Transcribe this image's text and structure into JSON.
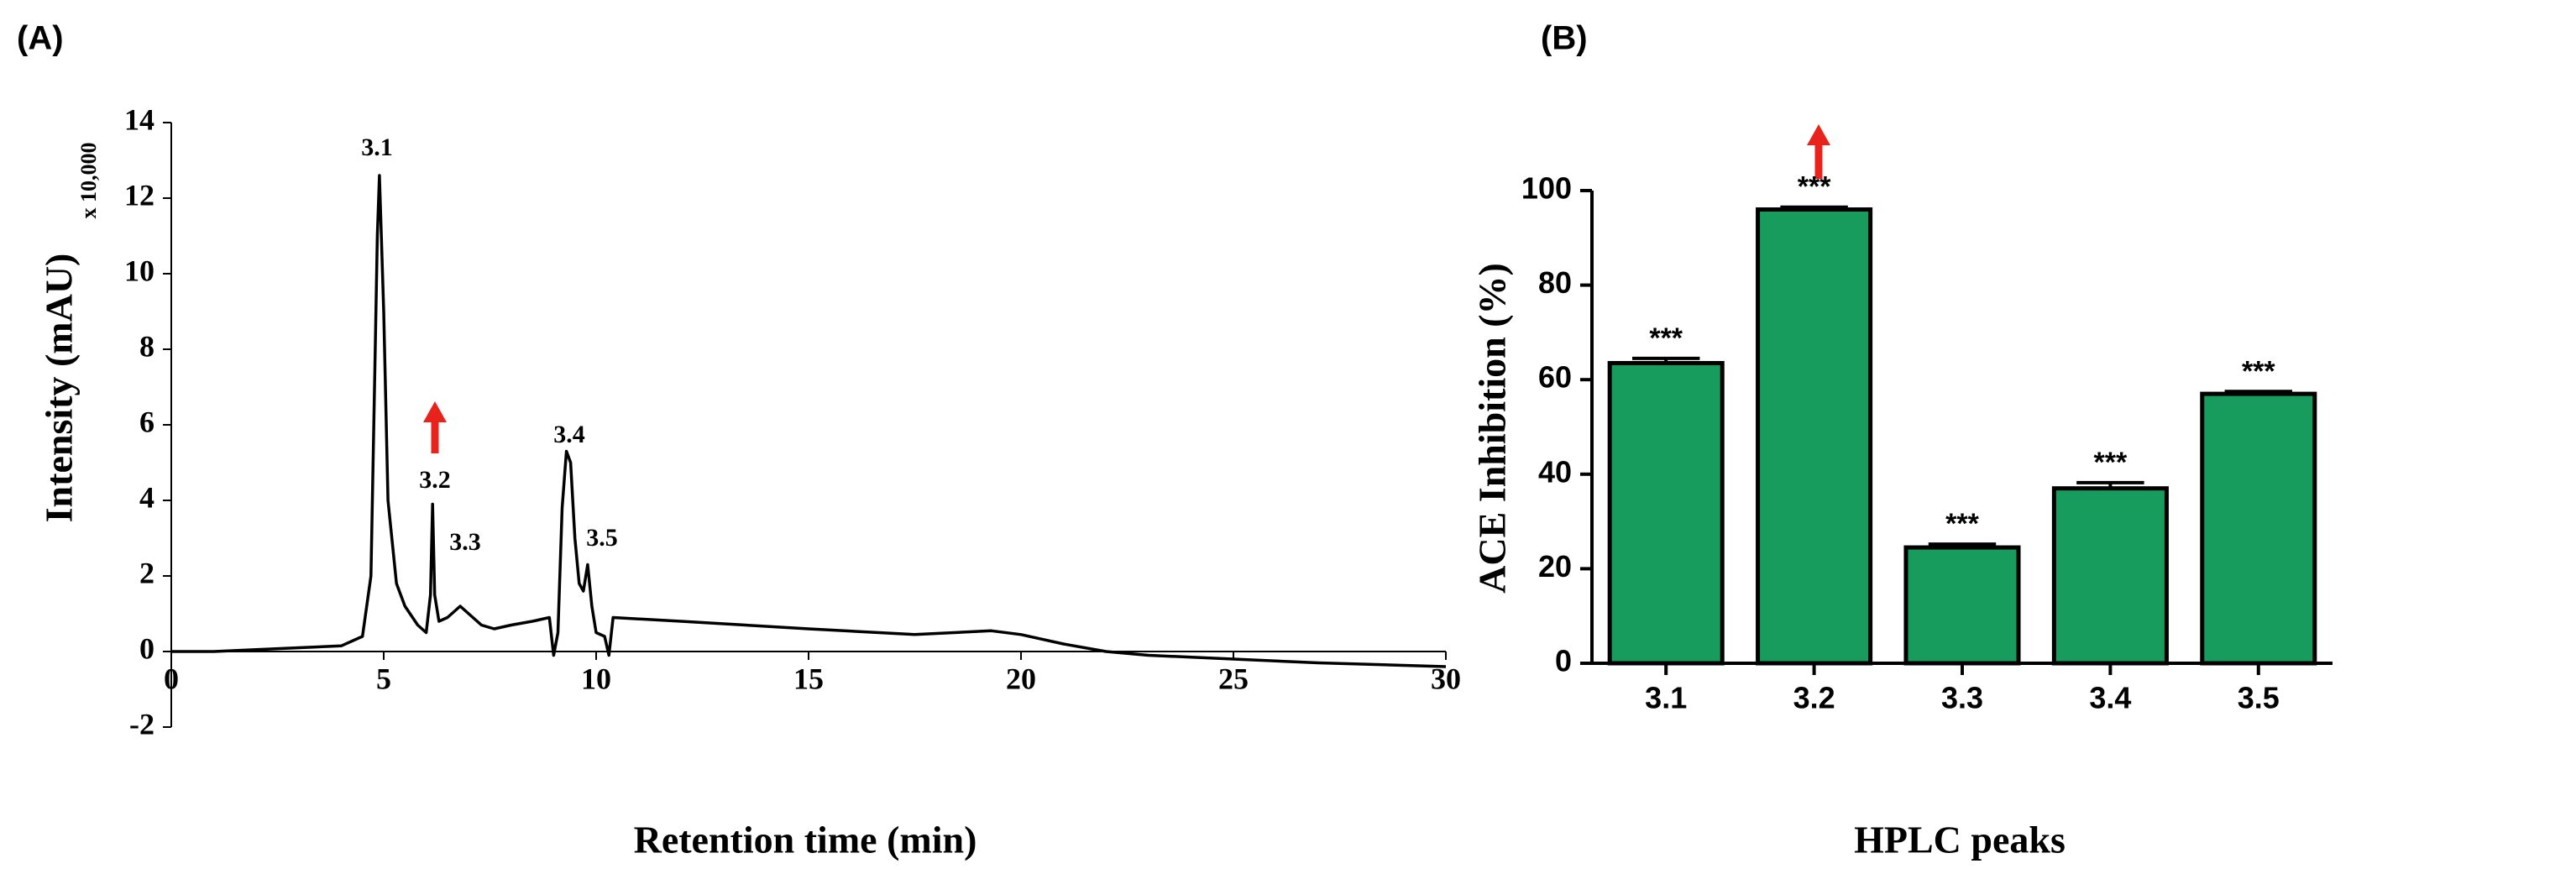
{
  "chart_data": [
    {
      "type": "line",
      "panel": "(A)",
      "x_label": "Retention time (min)",
      "y_label": "Intensity (mAU)",
      "y_multiplier": "x 10,000",
      "xlim": [
        0,
        30
      ],
      "xticks": [
        0,
        5,
        10,
        15,
        20,
        25,
        30
      ],
      "ylim": [
        -2,
        14
      ],
      "yticks": [
        -2,
        0,
        2,
        4,
        6,
        8,
        10,
        12,
        14
      ],
      "color": "#000000",
      "x": [
        0,
        1,
        2,
        3,
        4,
        4.5,
        4.7,
        4.8,
        4.85,
        4.9,
        5.0,
        5.1,
        5.3,
        5.5,
        5.8,
        6.0,
        6.1,
        6.15,
        6.2,
        6.3,
        6.5,
        6.8,
        7.0,
        7.3,
        7.6,
        8.0,
        8.5,
        8.9,
        9.0,
        9.1,
        9.2,
        9.3,
        9.4,
        9.5,
        9.6,
        9.7,
        9.8,
        9.9,
        10.0,
        10.2,
        10.3,
        10.4,
        12,
        15,
        17.5,
        19.3,
        20,
        21,
        22,
        23,
        25,
        27,
        30
      ],
      "values": [
        0,
        0,
        0.05,
        0.1,
        0.15,
        0.4,
        2,
        8,
        11,
        12.6,
        9,
        4,
        1.8,
        1.2,
        0.7,
        0.5,
        1.5,
        3.9,
        1.5,
        0.8,
        0.9,
        1.2,
        1.0,
        0.7,
        0.6,
        0.7,
        0.8,
        0.9,
        -0.1,
        0.5,
        3.8,
        5.3,
        5.0,
        3.0,
        1.8,
        1.6,
        2.3,
        1.2,
        0.5,
        0.4,
        -0.1,
        0.9,
        0.8,
        0.6,
        0.45,
        0.55,
        0.45,
        0.2,
        0.0,
        -0.1,
        -0.2,
        -0.3,
        -0.4
      ],
      "peak_labels": [
        "3.1",
        "3.2",
        "3.3",
        "3.4",
        "3.5"
      ]
    },
    {
      "type": "bar",
      "panel": "(B)",
      "x_label": "HPLC peaks",
      "y_label": "ACE Inhibition (%)",
      "categories": [
        "3.1",
        "3.2",
        "3.3",
        "3.4",
        "3.5"
      ],
      "values": [
        63.5,
        96,
        24.5,
        37,
        57
      ],
      "error": [
        1,
        0.5,
        0.7,
        1.2,
        0.5
      ],
      "significance": [
        "***",
        "***",
        "***",
        "***",
        "***"
      ],
      "color": "#189c5e",
      "ylim": [
        0,
        100
      ],
      "yticks": [
        0,
        20,
        40,
        60,
        80,
        100
      ]
    }
  ]
}
